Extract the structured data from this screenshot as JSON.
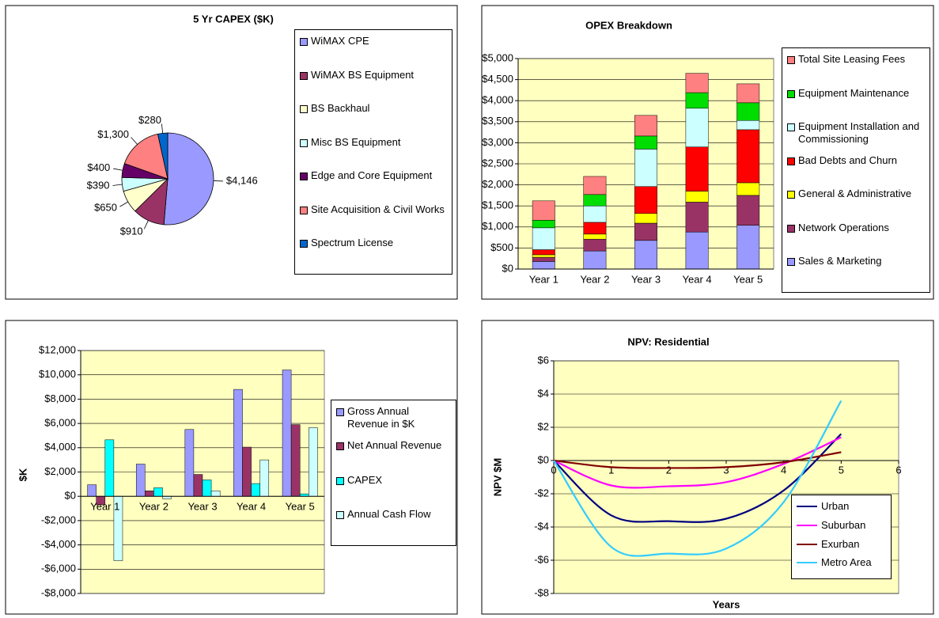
{
  "chart_data": [
    {
      "type": "pie",
      "title": "5 Yr CAPEX ($K)",
      "categories": [
        "WiMAX CPE",
        "WiMAX BS Equipment",
        "BS Backhaul",
        "Misc BS Equipment",
        "Edge and Core Equipment",
        "Site Acquisition & Civil Works",
        "Spectrum License"
      ],
      "values": [
        4146,
        910,
        650,
        390,
        400,
        1300,
        280
      ],
      "value_labels": [
        "$4,146",
        "$910",
        "$650",
        "$390",
        "$400",
        "$1,300",
        "$280"
      ],
      "colors": [
        "#9999ff",
        "#993366",
        "#ffffcc",
        "#ccffff",
        "#660066",
        "#ff8080",
        "#0066cc"
      ]
    },
    {
      "type": "bar",
      "stacked": true,
      "title": "OPEX Breakdown",
      "plot_color": "#ffffc0",
      "grid": true,
      "categories": [
        "Year 1",
        "Year 2",
        "Year 3",
        "Year 4",
        "Year 5"
      ],
      "series": [
        {
          "name": "Sales & Marketing",
          "color": "#9999ff",
          "values": [
            180,
            430,
            680,
            880,
            1040
          ]
        },
        {
          "name": "Network Operations",
          "color": "#993366",
          "values": [
            100,
            280,
            410,
            710,
            710
          ]
        },
        {
          "name": "General & Administrative",
          "color": "#ffff00",
          "values": [
            60,
            120,
            230,
            260,
            300
          ]
        },
        {
          "name": "Bad Debts and Churn",
          "color": "#ff0000",
          "values": [
            120,
            280,
            640,
            1050,
            1260
          ]
        },
        {
          "name": "Equipment Installation and Commissioning",
          "color": "#ccffff",
          "values": [
            520,
            390,
            890,
            920,
            220
          ]
        },
        {
          "name": "Equipment Maintenance",
          "color": "#00dd00",
          "values": [
            180,
            270,
            310,
            370,
            420
          ]
        },
        {
          "name": "Total Site Leasing Fees",
          "color": "#ff8080",
          "values": [
            460,
            430,
            490,
            460,
            450
          ]
        }
      ],
      "ylim": [
        0,
        5000
      ],
      "yticks": [
        {
          "value": 0,
          "label": "$0"
        },
        {
          "value": 500,
          "label": "$500"
        },
        {
          "value": 1000,
          "label": "$1,000"
        },
        {
          "value": 1500,
          "label": "$1,500"
        },
        {
          "value": 2000,
          "label": "$2,000"
        },
        {
          "value": 2500,
          "label": "$2,500"
        },
        {
          "value": 3000,
          "label": "$3,000"
        },
        {
          "value": 3500,
          "label": "$3,500"
        },
        {
          "value": 4000,
          "label": "$4,000"
        },
        {
          "value": 4500,
          "label": "$4,500"
        },
        {
          "value": 5000,
          "label": "$5,000"
        }
      ]
    },
    {
      "type": "bar",
      "stacked": false,
      "y_label": "$K",
      "plot_color": "#ffffc0",
      "grid": true,
      "categories": [
        "Year 1",
        "Year 2",
        "Year 3",
        "Year 4",
        "Year 5"
      ],
      "series": [
        {
          "name": "Gross Annual Revenue in $K",
          "color": "#9999ff",
          "values": [
            950,
            2650,
            5500,
            8800,
            10400
          ]
        },
        {
          "name": "Net Annual Revenue",
          "color": "#993366",
          "values": [
            -700,
            450,
            1800,
            4050,
            5900
          ]
        },
        {
          "name": "CAPEX",
          "color": "#00ffff",
          "values": [
            4650,
            700,
            1350,
            1050,
            200
          ]
        },
        {
          "name": "Annual Cash Flow",
          "color": "#ccffff",
          "values": [
            -5300,
            -200,
            450,
            3000,
            5650
          ]
        }
      ],
      "ylim": [
        -8000,
        12000
      ],
      "yticks": [
        {
          "value": 12000,
          "label": "$12,000"
        },
        {
          "value": 10000,
          "label": "$10,000"
        },
        {
          "value": 8000,
          "label": "$8,000"
        },
        {
          "value": 6000,
          "label": "$6,000"
        },
        {
          "value": 4000,
          "label": "$4,000"
        },
        {
          "value": 2000,
          "label": "$2,000"
        },
        {
          "value": 0,
          "label": "$0"
        },
        {
          "value": -2000,
          "label": "-$2,000"
        },
        {
          "value": -4000,
          "label": "-$4,000"
        },
        {
          "value": -6000,
          "label": "-$6,000"
        },
        {
          "value": -8000,
          "label": "-$8,000"
        }
      ]
    },
    {
      "type": "line",
      "title": "NPV: Residential",
      "x_label": "Years",
      "y_label": "NPV $M",
      "plot_color": "#ffffc0",
      "grid": true,
      "smooth": true,
      "x": [
        0,
        1,
        2,
        3,
        4,
        5
      ],
      "series": [
        {
          "name": "Urban",
          "color": "#000080",
          "values": [
            0,
            -3.3,
            -3.65,
            -3.5,
            -1.8,
            1.6
          ]
        },
        {
          "name": "Suburban",
          "color": "#ff00ff",
          "values": [
            0,
            -1.5,
            -1.55,
            -1.3,
            -0.2,
            1.4
          ]
        },
        {
          "name": "Exurban",
          "color": "#800000",
          "values": [
            0,
            -0.4,
            -0.45,
            -0.4,
            -0.1,
            0.5
          ]
        },
        {
          "name": "Metro Area",
          "color": "#33ccff",
          "values": [
            0,
            -5.2,
            -5.6,
            -5.3,
            -2.5,
            3.6
          ]
        }
      ],
      "xlim": [
        0,
        6
      ],
      "xticks": [
        0,
        1,
        2,
        3,
        4,
        5,
        6
      ],
      "ylim": [
        -8,
        6
      ],
      "yticks": [
        {
          "value": 6,
          "label": "$6"
        },
        {
          "value": 4,
          "label": "$4"
        },
        {
          "value": 2,
          "label": "$2"
        },
        {
          "value": 0,
          "label": "$0"
        },
        {
          "value": -2,
          "label": "-$2"
        },
        {
          "value": -4,
          "label": "-$4"
        },
        {
          "value": -6,
          "label": "-$6"
        },
        {
          "value": -8,
          "label": "-$8"
        }
      ]
    }
  ]
}
